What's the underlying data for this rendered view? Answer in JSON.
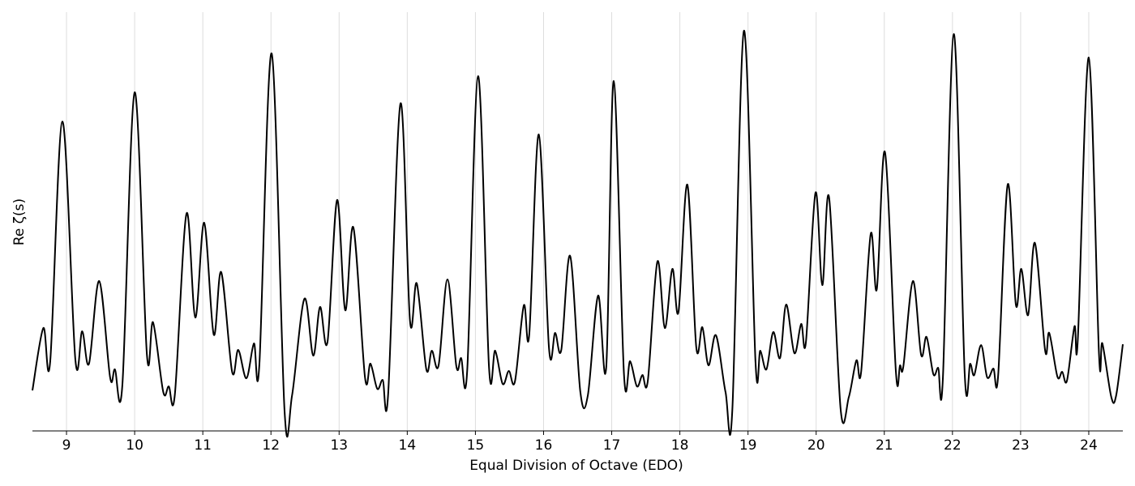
{
  "chart_data": {
    "type": "line",
    "xlabel": "Equal Division of Octave (EDO)",
    "ylabel": "Re ζ(s)",
    "color": "#000000",
    "grid": true,
    "xlim": [
      8.5,
      24.5
    ],
    "ylim": [
      0,
      52
    ],
    "xticks": [
      9,
      10,
      11,
      12,
      13,
      14,
      15,
      16,
      17,
      18,
      19,
      20,
      21,
      22,
      23,
      24
    ],
    "x": [
      8.5,
      8.66,
      8.76,
      8.94,
      9.13,
      9.23,
      9.33,
      9.48,
      9.64,
      9.71,
      9.82,
      10.0,
      10.18,
      10.27,
      10.42,
      10.5,
      10.59,
      10.76,
      10.89,
      11.02,
      11.16,
      11.27,
      11.43,
      11.52,
      11.64,
      11.75,
      11.83,
      12.01,
      12.2,
      12.31,
      12.49,
      12.62,
      12.72,
      12.83,
      12.97,
      13.09,
      13.21,
      13.38,
      13.46,
      13.56,
      13.64,
      13.72,
      13.9,
      14.04,
      14.14,
      14.28,
      14.36,
      14.46,
      14.59,
      14.72,
      14.79,
      14.88,
      15.04,
      15.2,
      15.29,
      15.4,
      15.49,
      15.58,
      15.71,
      15.79,
      15.93,
      16.08,
      16.17,
      16.26,
      16.39,
      16.54,
      16.65,
      16.8,
      16.92,
      17.03,
      17.18,
      17.27,
      17.37,
      17.45,
      17.53,
      17.67,
      17.78,
      17.89,
      17.98,
      18.11,
      18.24,
      18.33,
      18.42,
      18.53,
      18.67,
      18.77,
      18.94,
      19.11,
      19.18,
      19.27,
      19.37,
      19.47,
      19.56,
      19.68,
      19.78,
      19.85,
      19.99,
      20.09,
      20.19,
      20.36,
      20.48,
      20.59,
      20.66,
      20.8,
      20.89,
      21.01,
      21.17,
      21.23,
      21.28,
      21.42,
      21.54,
      21.62,
      21.72,
      21.79,
      21.86,
      22.02,
      22.18,
      22.26,
      22.32,
      22.42,
      22.51,
      22.6,
      22.67,
      22.81,
      22.93,
      23.01,
      23.11,
      23.21,
      23.36,
      23.42,
      23.54,
      23.61,
      23.68,
      23.79,
      23.84,
      24.0,
      24.15,
      24.2,
      24.33,
      24.4,
      24.5
    ],
    "values": [
      5.0,
      12.7,
      8.5,
      38.2,
      8.8,
      12.3,
      8.3,
      18.5,
      6.6,
      7.6,
      5.7,
      41.8,
      9.4,
      13.4,
      4.8,
      5.5,
      4.5,
      26.8,
      14.0,
      25.7,
      11.9,
      19.6,
      7.3,
      10.0,
      6.5,
      10.8,
      8.2,
      46.6,
      2.4,
      4.4,
      16.3,
      9.3,
      15.3,
      11.0,
      28.5,
      14.9,
      25.1,
      6.6,
      8.3,
      5.2,
      6.3,
      4.6,
      40.4,
      13.6,
      18.2,
      7.6,
      9.9,
      8.1,
      18.7,
      8.0,
      9.0,
      7.5,
      43.8,
      7.8,
      9.9,
      5.8,
      7.4,
      6.1,
      15.5,
      11.9,
      36.6,
      10.2,
      12.1,
      10.0,
      21.6,
      4.8,
      4.4,
      16.7,
      7.9,
      43.2,
      7.0,
      8.6,
      5.5,
      6.9,
      6.2,
      20.9,
      12.7,
      20.0,
      14.7,
      30.4,
      10.4,
      12.8,
      8.1,
      11.8,
      4.8,
      2.6,
      49.4,
      8.5,
      9.9,
      7.6,
      12.2,
      9.0,
      15.6,
      9.6,
      13.2,
      11.0,
      29.4,
      18.0,
      28.8,
      2.6,
      4.2,
      8.7,
      7.3,
      24.3,
      17.5,
      34.4,
      7.3,
      8.1,
      8.0,
      18.5,
      9.4,
      11.6,
      7.0,
      7.8,
      6.6,
      49.0,
      7.0,
      8.3,
      6.9,
      10.6,
      6.6,
      7.7,
      6.8,
      30.4,
      15.6,
      20.0,
      14.3,
      23.2,
      9.9,
      12.1,
      6.7,
      7.3,
      6.2,
      12.9,
      11.4,
      46.1,
      9.5,
      10.8,
      4.2,
      4.3,
      10.7
    ]
  }
}
